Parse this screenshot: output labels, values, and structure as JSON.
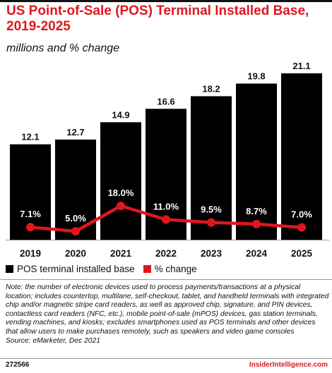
{
  "header": {
    "title": "US Point-of-Sale (POS) Terminal Installed Base, 2019-2025",
    "subtitle": "millions and % change"
  },
  "chart_data": {
    "type": "bar",
    "categories": [
      "2019",
      "2020",
      "2021",
      "2022",
      "2023",
      "2024",
      "2025"
    ],
    "series": [
      {
        "name": "POS terminal installed base",
        "type": "bar",
        "values": [
          12.1,
          12.7,
          14.9,
          16.6,
          18.2,
          19.8,
          21.1
        ],
        "labels": [
          "12.1",
          "12.7",
          "14.9",
          "16.6",
          "18.2",
          "19.8",
          "21.1"
        ],
        "color": "#000000"
      },
      {
        "name": "% change",
        "type": "line",
        "values": [
          7.1,
          5.0,
          18.0,
          11.0,
          9.5,
          8.7,
          7.0
        ],
        "labels": [
          "7.1%",
          "5.0%",
          "18.0%",
          "11.0%",
          "9.5%",
          "8.7%",
          "7.0%"
        ],
        "color": "#e0161e"
      }
    ],
    "legend_position": "bottom-left",
    "grid": false
  },
  "note": "Note: the number of electronic devices used to process payments/transactions at a physical location; includes countertop, multilane, self-checkout, tablet, and handheld terminals with integrated chip and/or magnetic stripe card readers, as well as approved chip, signature, and PIN devices, contactless card readers (NFC, etc.), mobile point-of-sale (mPOS) devices, gas station terminals, vending machines, and kiosks; excludes smartphones used as POS terminals and other devices that allow users to make purchases remotely, such as speakers and video game consoles",
  "source": "Source: eMarketer, Dec 2021",
  "footer": {
    "chart_id": "272566",
    "brand": "InsiderIntelligence.com"
  }
}
